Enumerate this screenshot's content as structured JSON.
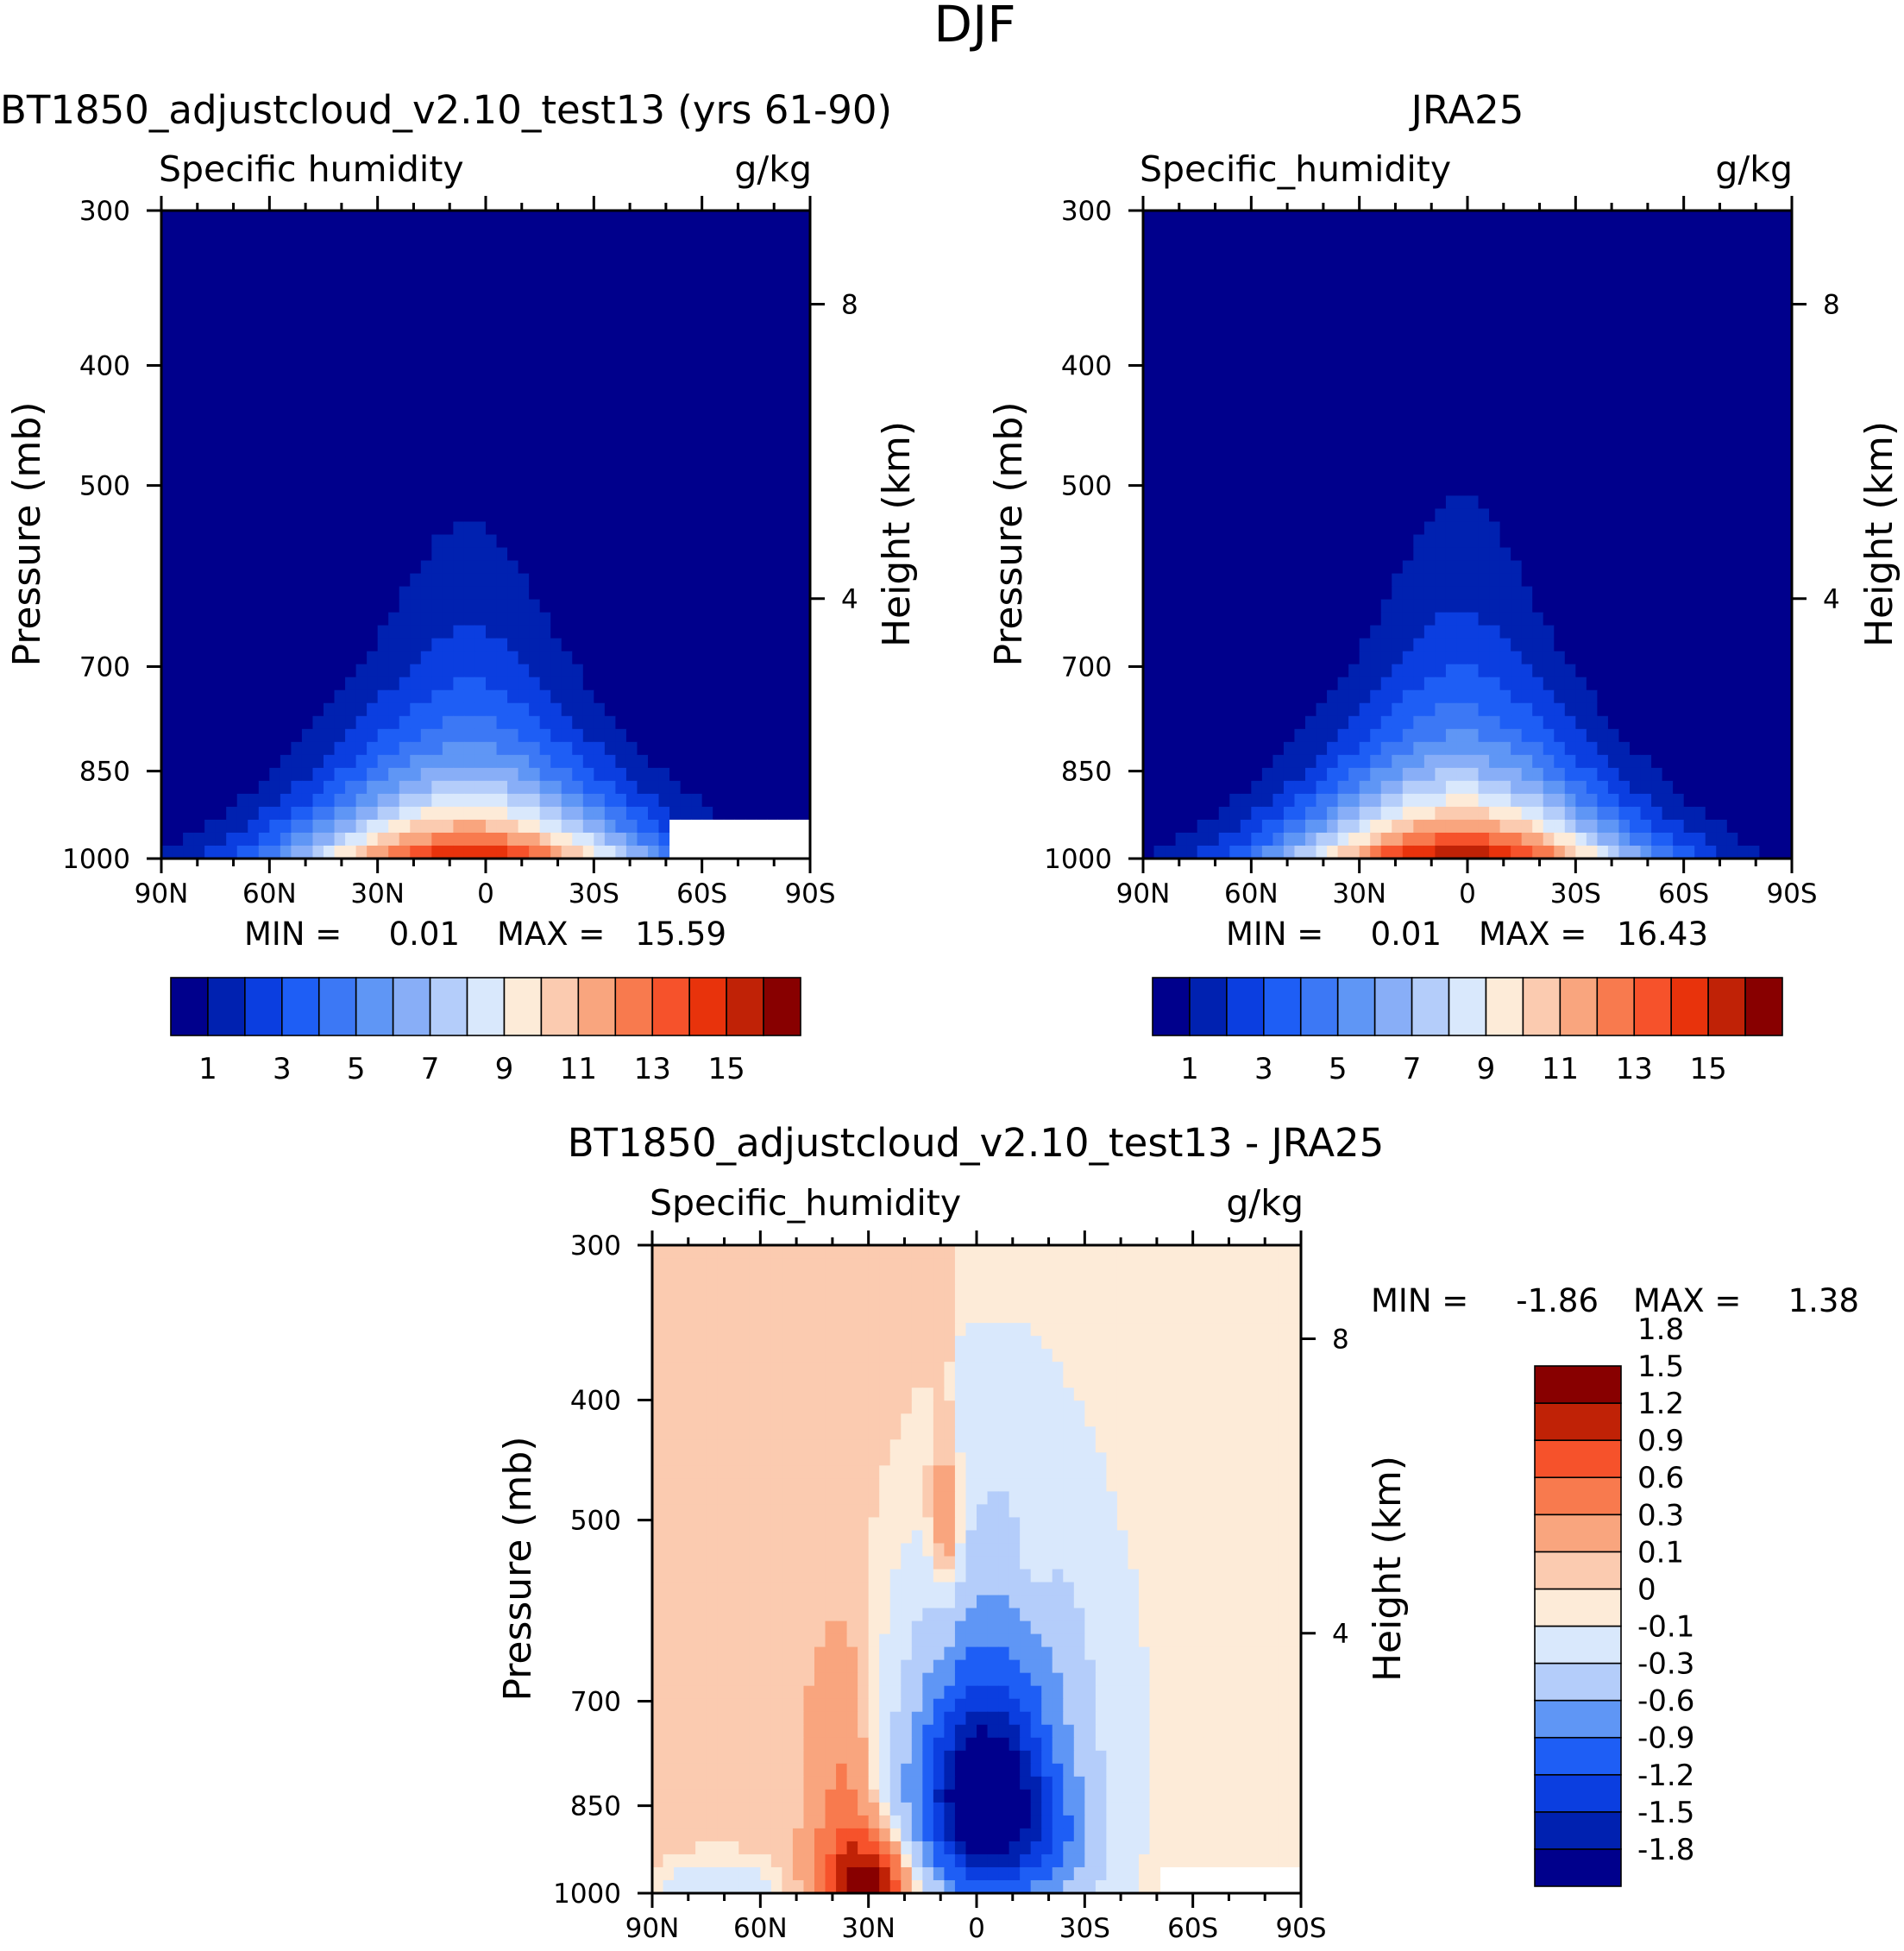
{
  "figure_title": "DJF",
  "colors": {
    "abs_scale": [
      "#00008c",
      "#0021b0",
      "#0b3ee0",
      "#1e5ef5",
      "#3c78f5",
      "#5f96f5",
      "#88aef7",
      "#b4cdfa",
      "#d9e8fc",
      "#fdebd8",
      "#fbcbb0",
      "#f9a57e",
      "#f87a4e",
      "#f6522b",
      "#e8330c",
      "#c02206",
      "#880000"
    ],
    "diff_scale": [
      "#00008c",
      "#0021b0",
      "#0b3ee0",
      "#1e5ef5",
      "#5f96f5",
      "#b4cdfa",
      "#d9e8fc",
      "#fdebd8",
      "#fbcbb0",
      "#f9a57e",
      "#f87a4e",
      "#f6522b",
      "#c02206",
      "#880000"
    ],
    "missing": "#ffffff"
  },
  "chart_data": [
    {
      "type": "heatmap",
      "panel": "model",
      "title": "BT1850_adjustcloud_v2.10_test13 (yrs 61-90)",
      "variable": "Specific humidity",
      "units": "g/kg",
      "ylabel": "Pressure (mb)",
      "ylabel_right": "Height (km)",
      "x_tick_labels": [
        "90N",
        "60N",
        "30N",
        "0",
        "30S",
        "60S",
        "90S"
      ],
      "x_ticks_lat": [
        90,
        60,
        30,
        0,
        -30,
        -60,
        -90
      ],
      "xlim": [
        90,
        -90
      ],
      "y_tick_labels": [
        "300",
        "400",
        "500",
        "700",
        "850",
        "1000"
      ],
      "y_ticks_mb": [
        300,
        400,
        500,
        700,
        850,
        1000
      ],
      "ylim_mb": [
        1000,
        300
      ],
      "height_tick_labels": [
        "8",
        "4"
      ],
      "height_ticks_mb": [
        357,
        617
      ],
      "min_label": "MIN =",
      "min_value": "0.01",
      "max_label": "MAX =",
      "max_value": "15.59",
      "colorbar": {
        "levels": [
          1,
          2,
          3,
          4,
          5,
          6,
          7,
          8,
          9,
          10,
          11,
          12,
          13,
          14,
          15,
          16
        ],
        "labels": [
          "1",
          "3",
          "5",
          "7",
          "9",
          "11",
          "13",
          "15"
        ]
      },
      "field": {
        "peak_value": 15.6,
        "peak_lat": 5,
        "blob_width_lat": 53,
        "scale_height_mb": 170,
        "pressure_exponent": 1.05,
        "missing_region": [
          {
            "lat_from": -52,
            "lat_to": -90,
            "p_from": 925,
            "p_to": 1000
          }
        ]
      }
    },
    {
      "type": "heatmap",
      "panel": "obs",
      "title": "JRA25",
      "variable": "Specific_humidity",
      "units": "g/kg",
      "ylabel": "Pressure (mb)",
      "ylabel_right": "Height (km)",
      "x_tick_labels": [
        "90N",
        "60N",
        "30N",
        "0",
        "30S",
        "60S",
        "90S"
      ],
      "x_ticks_lat": [
        90,
        60,
        30,
        0,
        -30,
        -60,
        -90
      ],
      "xlim": [
        90,
        -90
      ],
      "y_tick_labels": [
        "300",
        "400",
        "500",
        "700",
        "850",
        "1000"
      ],
      "y_ticks_mb": [
        300,
        400,
        500,
        700,
        850,
        1000
      ],
      "ylim_mb": [
        1000,
        300
      ],
      "height_tick_labels": [
        "8",
        "4"
      ],
      "height_ticks_mb": [
        357,
        617
      ],
      "min_label": "MIN =",
      "min_value": "0.01",
      "max_label": "MAX =",
      "max_value": "16.43",
      "colorbar": {
        "levels": [
          1,
          2,
          3,
          4,
          5,
          6,
          7,
          8,
          9,
          10,
          11,
          12,
          13,
          14,
          15,
          16
        ],
        "labels": [
          "1",
          "3",
          "5",
          "7",
          "9",
          "11",
          "13",
          "15"
        ]
      },
      "field": {
        "peak_value": 16.4,
        "peak_lat": 2,
        "blob_width_lat": 52,
        "scale_height_mb": 175,
        "pressure_exponent": 1.05,
        "missing_region": []
      }
    },
    {
      "type": "heatmap",
      "panel": "difference",
      "title": "BT1850_adjustcloud_v2.10_test13 - JRA25",
      "variable": "Specific_humidity",
      "units": "g/kg",
      "ylabel": "Pressure (mb)",
      "ylabel_right": "Height (km)",
      "x_tick_labels": [
        "90N",
        "60N",
        "30N",
        "0",
        "30S",
        "60S",
        "90S"
      ],
      "x_ticks_lat": [
        90,
        60,
        30,
        0,
        -30,
        -60,
        -90
      ],
      "xlim": [
        90,
        -90
      ],
      "y_tick_labels": [
        "300",
        "400",
        "500",
        "700",
        "850",
        "1000"
      ],
      "y_ticks_mb": [
        300,
        400,
        500,
        700,
        850,
        1000
      ],
      "ylim_mb": [
        1000,
        300
      ],
      "height_tick_labels": [
        "8",
        "4"
      ],
      "height_ticks_mb": [
        357,
        617
      ],
      "min_label": "MIN =",
      "min_value": "-1.86",
      "max_label": "MAX =",
      "max_value": "1.38",
      "colorbar": {
        "levels": [
          -1.8,
          -1.5,
          -1.2,
          -0.9,
          -0.6,
          -0.3,
          -0.1,
          0,
          0.1,
          0.3,
          0.6,
          0.9,
          1.2,
          1.5,
          1.8
        ],
        "labels": [
          "-1.8",
          "-1.5",
          "-1.2",
          "-0.9",
          "-0.6",
          "-0.3",
          "-0.1",
          "0",
          "0.1",
          "0.3",
          "0.6",
          "0.9",
          "1.2",
          "1.5",
          "1.8"
        ]
      },
      "field": {
        "background_north": 0.05,
        "background_south": -0.05,
        "features": [
          {
            "lat": -1,
            "p": 850,
            "amp": -1.86,
            "sigma_lat": 18,
            "sigma_p": 150
          },
          {
            "lat": -5,
            "p": 700,
            "amp": -0.7,
            "sigma_lat": 26,
            "sigma_p": 220
          },
          {
            "lat": -20,
            "p": 920,
            "amp": -0.5,
            "sigma_lat": 16,
            "sigma_p": 110
          },
          {
            "lat": 31,
            "p": 985,
            "amp": 1.38,
            "sigma_lat": 11,
            "sigma_p": 90
          },
          {
            "lat": 37,
            "p": 800,
            "amp": 0.3,
            "sigma_lat": 9,
            "sigma_p": 180
          },
          {
            "lat": 8,
            "p": 510,
            "amp": 0.45,
            "sigma_lat": 5,
            "sigma_p": 70
          },
          {
            "lat": -16,
            "p": 540,
            "amp": 0.18,
            "sigma_lat": 5,
            "sigma_p": 60
          },
          {
            "lat": 72,
            "p": 1000,
            "amp": -0.35,
            "sigma_lat": 16,
            "sigma_p": 60
          }
        ],
        "missing_region": [
          {
            "lat_from": -50,
            "lat_to": -90,
            "p_from": 960,
            "p_to": 1000
          }
        ]
      }
    }
  ]
}
